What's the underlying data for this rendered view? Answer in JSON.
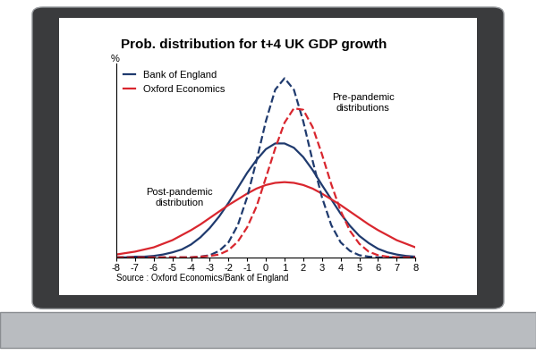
{
  "chart_data": {
    "type": "line",
    "title": "Prob. distribution for t+4 UK GDP growth",
    "y_label": "%",
    "source": "Source : Oxford Economics/Bank of England",
    "annotations": [
      "Pre-pandemic\ndistributions",
      "Post-pandemic\ndistribution"
    ],
    "x": [
      -8,
      -7.5,
      -7,
      -6.5,
      -6,
      -5.5,
      -5,
      -4.5,
      -4,
      -3.5,
      -3,
      -2.5,
      -2,
      -1.5,
      -1,
      -0.5,
      0,
      0.5,
      1,
      1.5,
      2,
      2.5,
      3,
      3.5,
      4,
      4.5,
      5,
      5.5,
      6,
      6.5,
      7,
      7.5,
      8
    ],
    "series": [
      {
        "name": "Bank of England",
        "color": "#1f3a6e",
        "line_style": "solid",
        "values": [
          0.0,
          0.0,
          0.1,
          0.1,
          0.2,
          0.4,
          0.7,
          1.1,
          1.8,
          2.8,
          4.1,
          5.7,
          7.6,
          9.7,
          11.8,
          13.6,
          15.1,
          15.9,
          15.9,
          15.3,
          14.0,
          12.2,
          10.1,
          8.1,
          6.1,
          4.4,
          3.0,
          2.0,
          1.2,
          0.7,
          0.4,
          0.2,
          0.1
        ]
      },
      {
        "name": "Oxford Economics",
        "color": "#d9262e",
        "line_style": "solid",
        "values": [
          0.4,
          0.6,
          0.8,
          1.1,
          1.4,
          1.9,
          2.4,
          3.1,
          3.8,
          4.6,
          5.5,
          6.4,
          7.3,
          8.1,
          8.9,
          9.6,
          10.1,
          10.4,
          10.5,
          10.4,
          10.1,
          9.6,
          8.9,
          8.1,
          7.3,
          6.4,
          5.5,
          4.6,
          3.8,
          3.1,
          2.4,
          1.9,
          1.4
        ]
      },
      {
        "name": "Bank of England",
        "color": "#1f3a6e",
        "line_style": "dashed",
        "values": [
          0,
          0,
          0,
          0,
          0,
          0,
          0,
          0,
          0,
          0.1,
          0.3,
          0.9,
          2.1,
          4.5,
          8.4,
          13.5,
          19.0,
          23.4,
          25.0,
          23.4,
          19.0,
          13.5,
          8.4,
          4.5,
          2.1,
          0.9,
          0.3,
          0.1,
          0,
          0,
          0,
          0,
          0
        ]
      },
      {
        "name": "Oxford Economics",
        "color": "#d9262e",
        "line_style": "dashed",
        "values": [
          0,
          0,
          0,
          0,
          0,
          0,
          0,
          0,
          0.0,
          0.1,
          0.2,
          0.4,
          1.0,
          2.2,
          4.2,
          7.1,
          11.1,
          15.2,
          18.8,
          20.8,
          20.6,
          18.2,
          14.4,
          10.2,
          6.5,
          3.7,
          1.9,
          0.8,
          0.3,
          0.1,
          0.0,
          0,
          0
        ]
      }
    ],
    "xlim": [
      -8,
      8
    ],
    "xticks": [
      -8,
      -7,
      -6,
      -5,
      -4,
      -3,
      -2,
      -1,
      0,
      1,
      2,
      3,
      4,
      5,
      6,
      7,
      8
    ],
    "ylim": [
      0,
      27
    ],
    "yticks": [],
    "tick_labels": "x",
    "grid": false,
    "legend": "upper left"
  }
}
